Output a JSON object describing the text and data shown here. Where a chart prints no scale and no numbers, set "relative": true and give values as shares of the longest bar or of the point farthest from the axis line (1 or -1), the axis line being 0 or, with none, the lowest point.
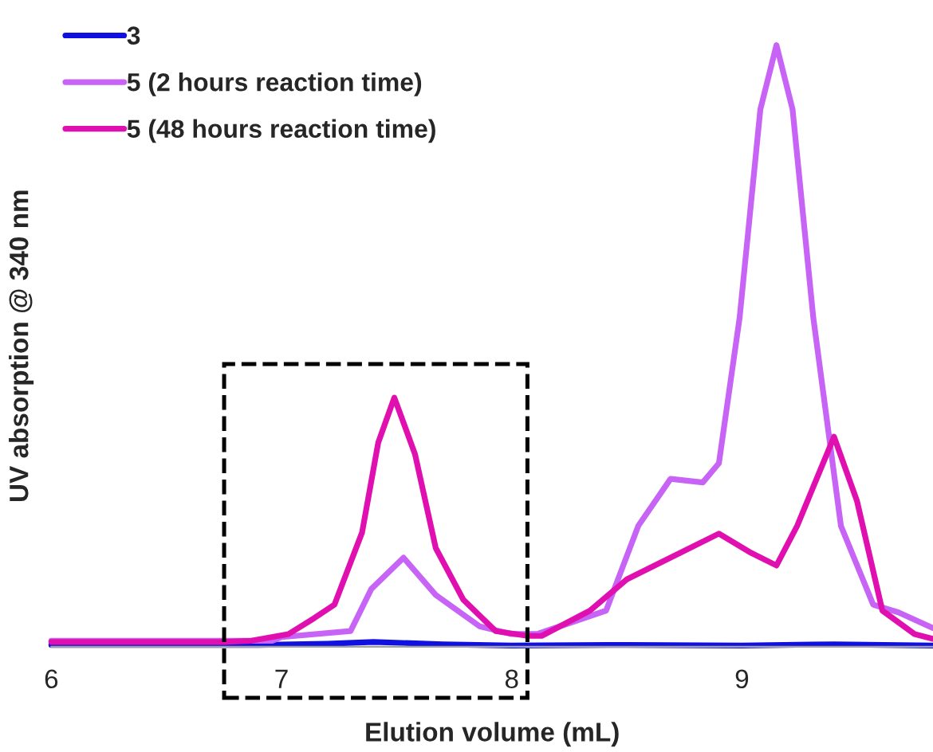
{
  "chart_data": {
    "type": "line",
    "relative": true,
    "xlabel": "Elution volume (mL)",
    "ylabel": "UV absorption @ 340 nm",
    "xlim": [
      6,
      9.83
    ],
    "xticks": [
      6,
      7,
      8,
      9
    ],
    "legend": "top left",
    "grid": false,
    "series": [
      {
        "name": "3",
        "color": "#1010e0",
        "x": [
          6.0,
          6.9,
          7.2,
          7.4,
          7.7,
          8.0,
          8.5,
          9.0,
          9.4,
          9.83
        ],
        "values": [
          0.003,
          0.003,
          0.005,
          0.008,
          0.004,
          0.002,
          0.003,
          0.002,
          0.004,
          0.002
        ]
      },
      {
        "name": "5 (2 hours reaction time)",
        "color": "#c763f5",
        "x": [
          6.0,
          6.96,
          7.0,
          7.3,
          7.39,
          7.53,
          7.67,
          7.86,
          8.0,
          8.11,
          8.41,
          8.55,
          8.69,
          8.83,
          8.9,
          8.99,
          9.08,
          9.15,
          9.22,
          9.31,
          9.43,
          9.57,
          9.68,
          9.83
        ],
        "values": [
          0.01,
          0.01,
          0.016,
          0.026,
          0.096,
          0.148,
          0.086,
          0.034,
          0.021,
          0.021,
          0.06,
          0.201,
          0.279,
          0.273,
          0.305,
          0.547,
          0.893,
          1.0,
          0.893,
          0.547,
          0.201,
          0.07,
          0.057,
          0.031
        ]
      },
      {
        "name": "5 (48 hours reaction time)",
        "color": "#e010b0",
        "x": [
          6.0,
          6.75,
          6.87,
          7.03,
          7.14,
          7.23,
          7.35,
          7.42,
          7.49,
          7.58,
          7.67,
          7.79,
          7.93,
          8.07,
          8.13,
          8.34,
          8.5,
          8.69,
          8.9,
          9.04,
          9.15,
          9.24,
          9.4,
          9.5,
          9.61,
          9.75,
          9.83
        ],
        "values": [
          0.008,
          0.008,
          0.01,
          0.021,
          0.047,
          0.07,
          0.19,
          0.339,
          0.414,
          0.32,
          0.164,
          0.078,
          0.026,
          0.018,
          0.018,
          0.06,
          0.112,
          0.148,
          0.188,
          0.156,
          0.135,
          0.201,
          0.349,
          0.242,
          0.06,
          0.021,
          0.013
        ]
      }
    ]
  }
}
